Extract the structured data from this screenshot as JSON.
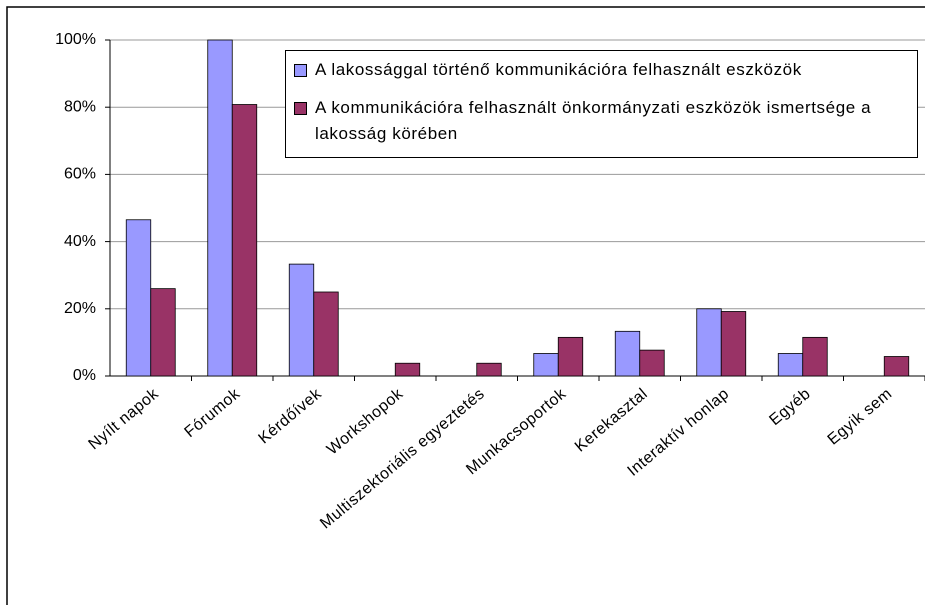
{
  "chart_data": {
    "type": "bar",
    "categories": [
      "Nyílt napok",
      "Fórumok",
      "Kérdőívek",
      "Workshopok",
      "Multiszektoriális egyeztetés",
      "Munkacsoportok",
      "Kerekasztal",
      "Interaktív honlap",
      "Egyéb",
      "Egyik sem"
    ],
    "series": [
      {
        "name": "A lakossággal történő kommunikációra felhasznált eszközök",
        "color": "#9999ff",
        "values": [
          46.5,
          100,
          33.3,
          0,
          0,
          6.7,
          13.3,
          20,
          6.7,
          0
        ]
      },
      {
        "name": "A kommunikációra felhasznált önkormányzati eszközök ismertsége a lakosság körében",
        "color": "#993366",
        "values": [
          26,
          80.8,
          25,
          3.8,
          3.8,
          11.5,
          7.7,
          19.2,
          11.5,
          5.8
        ]
      }
    ],
    "ylim": [
      0,
      100
    ],
    "yticks": [
      {
        "value": 0,
        "label": "0%"
      },
      {
        "value": 20,
        "label": "20%"
      },
      {
        "value": 40,
        "label": "40%"
      },
      {
        "value": 60,
        "label": "60%"
      },
      {
        "value": 80,
        "label": "80%"
      },
      {
        "value": 100,
        "label": "100%"
      }
    ],
    "grid": true
  }
}
